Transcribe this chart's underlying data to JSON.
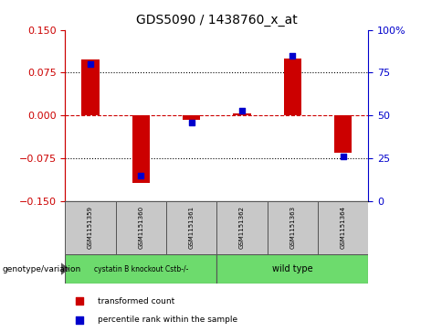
{
  "title": "GDS5090 / 1438760_x_at",
  "samples": [
    "GSM1151359",
    "GSM1151360",
    "GSM1151361",
    "GSM1151362",
    "GSM1151363",
    "GSM1151364"
  ],
  "transformed_count": [
    0.098,
    -0.118,
    -0.008,
    0.003,
    0.1,
    -0.065
  ],
  "percentile_rank": [
    80,
    15,
    46,
    53,
    85,
    26
  ],
  "ylim_left": [
    -0.15,
    0.15
  ],
  "ylim_right": [
    0,
    100
  ],
  "yticks_left": [
    -0.15,
    -0.075,
    0,
    0.075,
    0.15
  ],
  "yticks_right": [
    0,
    25,
    50,
    75,
    100
  ],
  "bar_color": "#cc0000",
  "dot_color": "#0000cc",
  "hline_color": "#cc0000",
  "grid_color": "#000000",
  "groups": [
    {
      "label": "cystatin B knockout Cstb-/-",
      "color": "#6ddb6d"
    },
    {
      "label": "wild type",
      "color": "#6ddb6d"
    }
  ],
  "group_box_color": "#c8c8c8",
  "legend_transformed": "transformed count",
  "legend_percentile": "percentile rank within the sample",
  "genotype_label": "genotype/variation",
  "bar_width": 0.35
}
